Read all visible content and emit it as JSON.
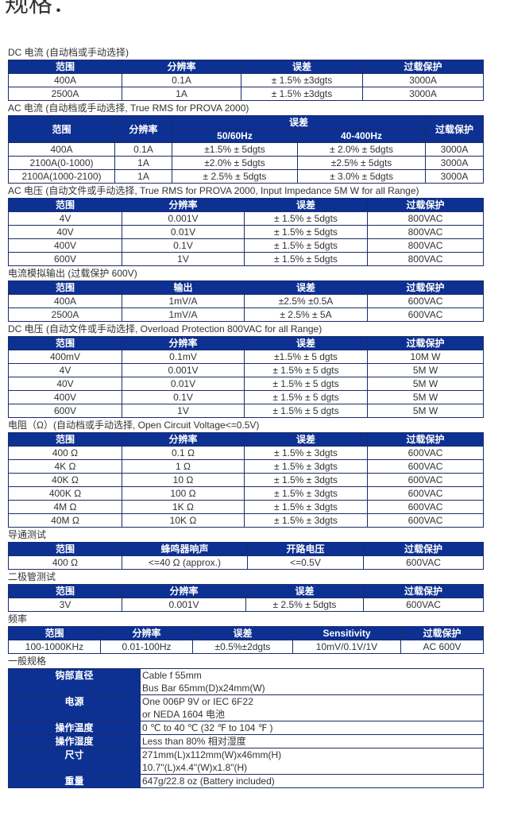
{
  "title": "规格：",
  "sections": [
    {
      "caption": "DC 电流 (自动档或手动选择)",
      "header": [
        [
          "范围",
          "分辨率",
          "误差",
          "过载保护"
        ]
      ],
      "rows": [
        [
          "400A",
          "0.1A",
          "± 1.5% ±3dgts",
          "3000A"
        ],
        [
          "2500A",
          "1A",
          "± 1.5% ±3dgts",
          "3000A"
        ]
      ]
    },
    {
      "caption": "AC 电流 (自动档或手动选择, True RMS for PROVA 2000)",
      "header": [
        [
          "范围",
          "分辨率",
          "误差",
          "过载保护"
        ],
        [
          "50/60Hz",
          "40-400Hz"
        ]
      ],
      "rows": [
        [
          "400A",
          "0.1A",
          "±1.5% ± 5dgts",
          "± 2.0% ± 5dgts",
          "3000A"
        ],
        [
          "2100A(0-1000)",
          "1A",
          "±2.0% ± 5dgts",
          "±2.5% ± 5dgts",
          "3000A"
        ],
        [
          "2100A(1000-2100)",
          "1A",
          "± 2.5% ± 5dgts",
          "± 3.0% ± 5dgts",
          "3000A"
        ]
      ]
    },
    {
      "caption": "AC 电压 (自动文件或手动选择, True RMS for PROVA 2000, Input Impedance 5M W for all Range)",
      "header": [
        [
          "范围",
          "分辨率",
          "误差",
          "过载保护"
        ]
      ],
      "rows": [
        [
          "4V",
          "0.001V",
          "± 1.5% ± 5dgts",
          "800VAC"
        ],
        [
          "40V",
          "0.01V",
          "± 1.5% ± 5dgts",
          "800VAC"
        ],
        [
          "400V",
          "0.1V",
          "± 1.5% ± 5dgts",
          "800VAC"
        ],
        [
          "600V",
          "1V",
          "± 1.5% ± 5dgts",
          "800VAC"
        ]
      ]
    },
    {
      "caption": "电流模拟输出 (过载保护 600V)",
      "header": [
        [
          "范围",
          "输出",
          "误差",
          "过载保护"
        ]
      ],
      "rows": [
        [
          "400A",
          "1mV/A",
          "±2.5% ±0.5A",
          "600VAC"
        ],
        [
          "2500A",
          "1mV/A",
          "± 2.5% ± 5A",
          "600VAC"
        ]
      ]
    },
    {
      "caption": "DC 电压 (自动文件或手动选择, Overload Protection 800VAC for all Range)",
      "header": [
        [
          "范围",
          "分辨率",
          "误差",
          "过载保护"
        ]
      ],
      "rows": [
        [
          "400mV",
          "0.1mV",
          "±1.5% ± 5 dgts",
          "10M W"
        ],
        [
          "4V",
          "0.001V",
          "± 1.5% ± 5 dgts",
          "5M W"
        ],
        [
          "40V",
          "0.01V",
          "± 1.5% ± 5 dgts",
          "5M W"
        ],
        [
          "400V",
          "0.1V",
          "± 1.5% ± 5 dgts",
          "5M W"
        ],
        [
          "600V",
          "1V",
          "± 1.5% ± 5 dgts",
          "5M W"
        ]
      ]
    },
    {
      "caption": "电阻（Ω）(自动档或手动选择, Open Circuit Voltage<=0.5V)",
      "header": [
        [
          "范围",
          "分辨率",
          "误差",
          "过载保护"
        ]
      ],
      "rows": [
        [
          "400 Ω",
          "0.1 Ω",
          "± 1.5% ± 3dgts",
          "600VAC"
        ],
        [
          "4K Ω",
          "1 Ω",
          "± 1.5% ± 3dgts",
          "600VAC"
        ],
        [
          "40K Ω",
          "10 Ω",
          "± 1.5% ± 3dgts",
          "600VAC"
        ],
        [
          "400K Ω",
          "100 Ω",
          "± 1.5% ± 3dgts",
          "600VAC"
        ],
        [
          "4M Ω",
          "1K Ω",
          "± 1.5% ± 3dgts",
          "600VAC"
        ],
        [
          "40M Ω",
          "10K Ω",
          "± 1.5% ± 3dgts",
          "600VAC"
        ]
      ]
    },
    {
      "caption": "导通测试",
      "header": [
        [
          "范围",
          "蜂鸣器响声",
          "开路电压",
          "过载保护"
        ]
      ],
      "rows": [
        [
          "400 Ω",
          "<=40 Ω (approx.)",
          "<=0.5V",
          "600VAC"
        ]
      ]
    },
    {
      "caption": "二极管测试",
      "header": [
        [
          "范围",
          "分辨率",
          "误差",
          "过载保护"
        ]
      ],
      "rows": [
        [
          "3V",
          "0.001V",
          "± 2.5% ± 5dgts",
          "600VAC"
        ]
      ]
    },
    {
      "caption": "频率",
      "header": [
        [
          "范围",
          "分辨率",
          "误差",
          "Sensitivity",
          "过载保护"
        ]
      ],
      "rows": [
        [
          "100-1000KHz",
          "0.01-100Hz",
          "±0.5%±2dgts",
          "10mV/0.1V/1V",
          "AC 600V"
        ]
      ]
    },
    {
      "caption": "一般规格",
      "rows": [
        [
          "钩部直径",
          [
            "Cable f 55mm",
            "Bus Bar 65mm(D)x24mm(W)"
          ]
        ],
        [
          "电源",
          [
            "One 006P 9V or IEC 6F22",
            "or NEDA 1604 电池"
          ]
        ],
        [
          "操作温度",
          "0 ℃ to 40 ℃ (32 ℉ to 104 ℉ )"
        ],
        [
          "操作湿度",
          "Less than 80% 相对湿度"
        ],
        [
          "尺寸",
          [
            "271mm(L)x112mm(W)x46mm(H)",
            "10.7\"(L)x4.4\"(W)x1.8\"(H)"
          ]
        ],
        [
          "重量",
          "647g/22.8 oz (Battery included)"
        ]
      ]
    }
  ]
}
